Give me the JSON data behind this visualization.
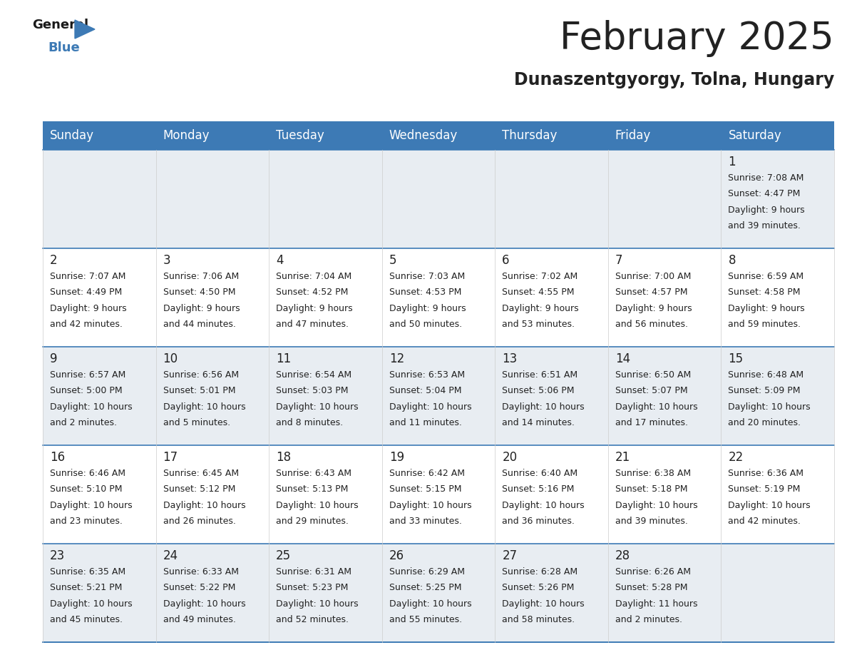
{
  "title": "February 2025",
  "subtitle": "Dunaszentgyorgy, Tolna, Hungary",
  "header_color": "#3d7ab5",
  "header_text_color": "#ffffff",
  "cell_bg_light": "#e8edf2",
  "cell_bg_white": "#ffffff",
  "day_headers": [
    "Sunday",
    "Monday",
    "Tuesday",
    "Wednesday",
    "Thursday",
    "Friday",
    "Saturday"
  ],
  "days": [
    {
      "day": 1,
      "col": 6,
      "row": 0,
      "sunrise": "7:08 AM",
      "sunset": "4:47 PM",
      "daylight_hours": 9,
      "daylight_mins": 39
    },
    {
      "day": 2,
      "col": 0,
      "row": 1,
      "sunrise": "7:07 AM",
      "sunset": "4:49 PM",
      "daylight_hours": 9,
      "daylight_mins": 42
    },
    {
      "day": 3,
      "col": 1,
      "row": 1,
      "sunrise": "7:06 AM",
      "sunset": "4:50 PM",
      "daylight_hours": 9,
      "daylight_mins": 44
    },
    {
      "day": 4,
      "col": 2,
      "row": 1,
      "sunrise": "7:04 AM",
      "sunset": "4:52 PM",
      "daylight_hours": 9,
      "daylight_mins": 47
    },
    {
      "day": 5,
      "col": 3,
      "row": 1,
      "sunrise": "7:03 AM",
      "sunset": "4:53 PM",
      "daylight_hours": 9,
      "daylight_mins": 50
    },
    {
      "day": 6,
      "col": 4,
      "row": 1,
      "sunrise": "7:02 AM",
      "sunset": "4:55 PM",
      "daylight_hours": 9,
      "daylight_mins": 53
    },
    {
      "day": 7,
      "col": 5,
      "row": 1,
      "sunrise": "7:00 AM",
      "sunset": "4:57 PM",
      "daylight_hours": 9,
      "daylight_mins": 56
    },
    {
      "day": 8,
      "col": 6,
      "row": 1,
      "sunrise": "6:59 AM",
      "sunset": "4:58 PM",
      "daylight_hours": 9,
      "daylight_mins": 59
    },
    {
      "day": 9,
      "col": 0,
      "row": 2,
      "sunrise": "6:57 AM",
      "sunset": "5:00 PM",
      "daylight_hours": 10,
      "daylight_mins": 2
    },
    {
      "day": 10,
      "col": 1,
      "row": 2,
      "sunrise": "6:56 AM",
      "sunset": "5:01 PM",
      "daylight_hours": 10,
      "daylight_mins": 5
    },
    {
      "day": 11,
      "col": 2,
      "row": 2,
      "sunrise": "6:54 AM",
      "sunset": "5:03 PM",
      "daylight_hours": 10,
      "daylight_mins": 8
    },
    {
      "day": 12,
      "col": 3,
      "row": 2,
      "sunrise": "6:53 AM",
      "sunset": "5:04 PM",
      "daylight_hours": 10,
      "daylight_mins": 11
    },
    {
      "day": 13,
      "col": 4,
      "row": 2,
      "sunrise": "6:51 AM",
      "sunset": "5:06 PM",
      "daylight_hours": 10,
      "daylight_mins": 14
    },
    {
      "day": 14,
      "col": 5,
      "row": 2,
      "sunrise": "6:50 AM",
      "sunset": "5:07 PM",
      "daylight_hours": 10,
      "daylight_mins": 17
    },
    {
      "day": 15,
      "col": 6,
      "row": 2,
      "sunrise": "6:48 AM",
      "sunset": "5:09 PM",
      "daylight_hours": 10,
      "daylight_mins": 20
    },
    {
      "day": 16,
      "col": 0,
      "row": 3,
      "sunrise": "6:46 AM",
      "sunset": "5:10 PM",
      "daylight_hours": 10,
      "daylight_mins": 23
    },
    {
      "day": 17,
      "col": 1,
      "row": 3,
      "sunrise": "6:45 AM",
      "sunset": "5:12 PM",
      "daylight_hours": 10,
      "daylight_mins": 26
    },
    {
      "day": 18,
      "col": 2,
      "row": 3,
      "sunrise": "6:43 AM",
      "sunset": "5:13 PM",
      "daylight_hours": 10,
      "daylight_mins": 29
    },
    {
      "day": 19,
      "col": 3,
      "row": 3,
      "sunrise": "6:42 AM",
      "sunset": "5:15 PM",
      "daylight_hours": 10,
      "daylight_mins": 33
    },
    {
      "day": 20,
      "col": 4,
      "row": 3,
      "sunrise": "6:40 AM",
      "sunset": "5:16 PM",
      "daylight_hours": 10,
      "daylight_mins": 36
    },
    {
      "day": 21,
      "col": 5,
      "row": 3,
      "sunrise": "6:38 AM",
      "sunset": "5:18 PM",
      "daylight_hours": 10,
      "daylight_mins": 39
    },
    {
      "day": 22,
      "col": 6,
      "row": 3,
      "sunrise": "6:36 AM",
      "sunset": "5:19 PM",
      "daylight_hours": 10,
      "daylight_mins": 42
    },
    {
      "day": 23,
      "col": 0,
      "row": 4,
      "sunrise": "6:35 AM",
      "sunset": "5:21 PM",
      "daylight_hours": 10,
      "daylight_mins": 45
    },
    {
      "day": 24,
      "col": 1,
      "row": 4,
      "sunrise": "6:33 AM",
      "sunset": "5:22 PM",
      "daylight_hours": 10,
      "daylight_mins": 49
    },
    {
      "day": 25,
      "col": 2,
      "row": 4,
      "sunrise": "6:31 AM",
      "sunset": "5:23 PM",
      "daylight_hours": 10,
      "daylight_mins": 52
    },
    {
      "day": 26,
      "col": 3,
      "row": 4,
      "sunrise": "6:29 AM",
      "sunset": "5:25 PM",
      "daylight_hours": 10,
      "daylight_mins": 55
    },
    {
      "day": 27,
      "col": 4,
      "row": 4,
      "sunrise": "6:28 AM",
      "sunset": "5:26 PM",
      "daylight_hours": 10,
      "daylight_mins": 58
    },
    {
      "day": 28,
      "col": 5,
      "row": 4,
      "sunrise": "6:26 AM",
      "sunset": "5:28 PM",
      "daylight_hours": 11,
      "daylight_mins": 2
    }
  ],
  "num_rows": 5,
  "num_cols": 7,
  "title_fontsize": 38,
  "subtitle_fontsize": 17,
  "header_fontsize": 12,
  "day_num_fontsize": 12,
  "info_fontsize": 9,
  "line_color": "#3d7ab5",
  "background_color": "#ffffff",
  "text_color": "#222222"
}
